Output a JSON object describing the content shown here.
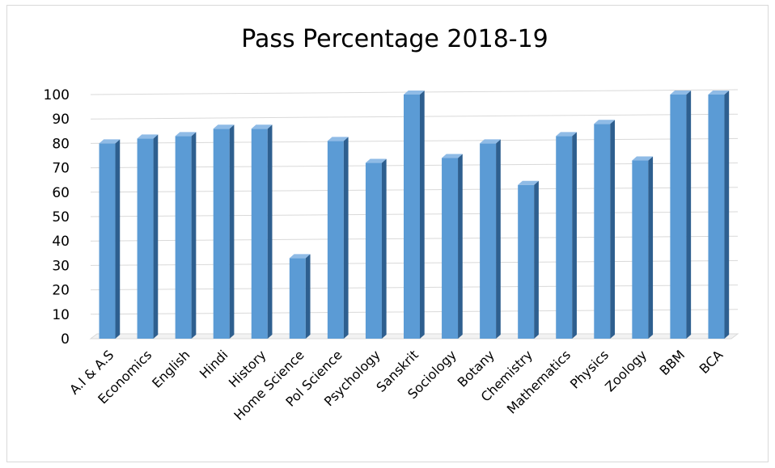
{
  "chart_data": {
    "type": "bar",
    "title": "Pass Percentage 2018-19",
    "xlabel": "",
    "ylabel": "",
    "ylim": [
      0,
      100
    ],
    "yticks": [
      0,
      10,
      20,
      30,
      40,
      50,
      60,
      70,
      80,
      90,
      100
    ],
    "grid": true,
    "legend": "none",
    "bar_color": "#5b9bd5",
    "categories": [
      "A.I & A.S",
      "Economics",
      "English",
      "Hindi",
      "History",
      "Home Science",
      "Pol Science",
      "Psychology",
      "Sanskrit",
      "Sociology",
      "Botany",
      "Chemistry",
      "Mathematics",
      "Physics",
      "Zoology",
      "BBM",
      "BCA"
    ],
    "values": [
      80,
      82,
      83,
      86,
      86,
      33,
      81,
      72,
      100,
      74,
      80,
      63,
      83,
      88,
      73,
      100,
      100
    ]
  }
}
